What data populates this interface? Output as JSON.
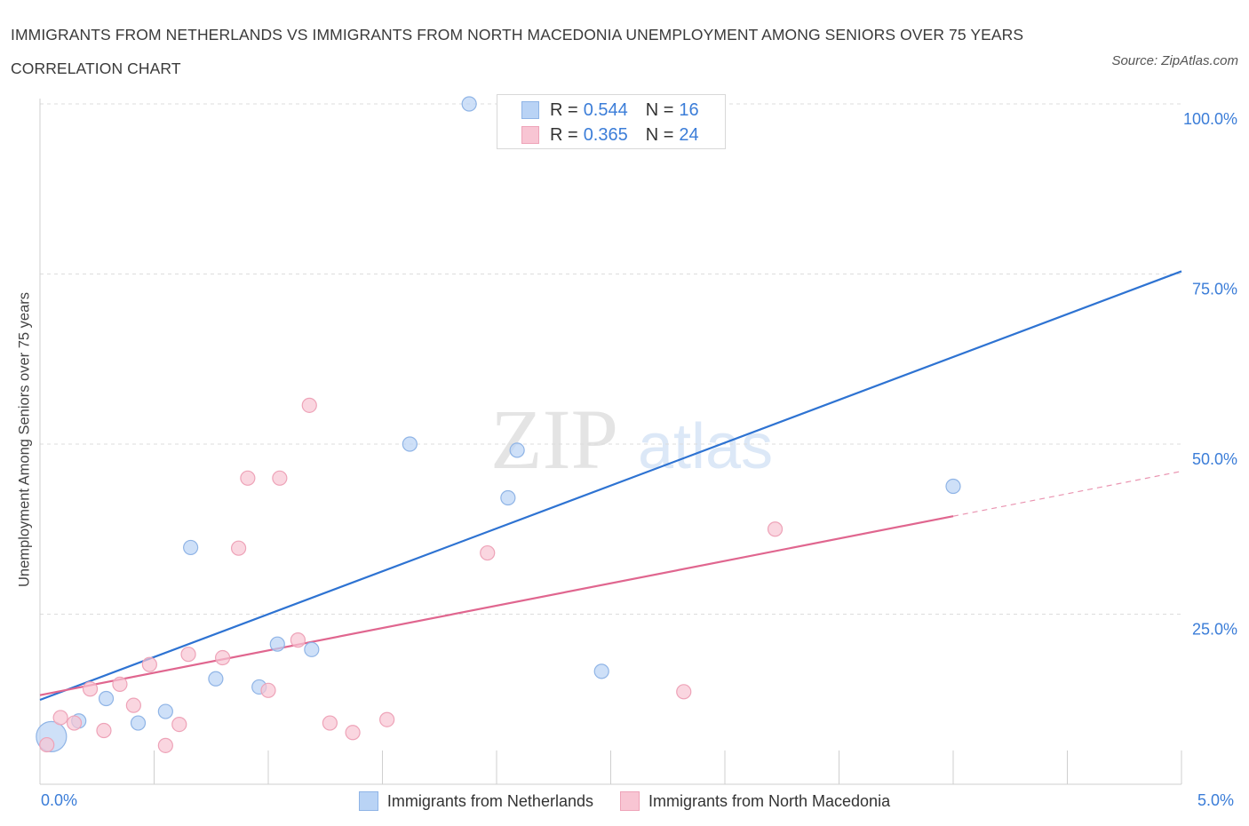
{
  "title": "IMMIGRANTS FROM NETHERLANDS VS IMMIGRANTS FROM NORTH MACEDONIA UNEMPLOYMENT AMONG SENIORS OVER 75 YEARS CORRELATION CHART",
  "source": "Source: ZipAtlas.com",
  "watermark": {
    "zip": "ZIP",
    "atlas": "atlas"
  },
  "legend_top": {
    "rows": [
      {
        "r_label": "R =",
        "r_value": "0.544",
        "n_label": "N =",
        "n_value": "16"
      },
      {
        "r_label": "R =",
        "r_value": "0.365",
        "n_label": "N =",
        "n_value": "24"
      }
    ]
  },
  "x_axis_labels": {
    "left": "0.0%",
    "right": "5.0%"
  },
  "colors": {
    "blue_fill": "#b9d3f5",
    "blue_stroke": "#8fb4e6",
    "blue_line": "#2e73d2",
    "pink_fill": "#f8c5d3",
    "pink_stroke": "#eea3b8",
    "pink_line": "#e0668f",
    "grid": "#dcdcdc",
    "tick_text": "#3b7dd8"
  },
  "chart_data": {
    "type": "scatter",
    "title": "IMMIGRANTS FROM NETHERLANDS VS IMMIGRANTS FROM NORTH MACEDONIA UNEMPLOYMENT AMONG SENIORS OVER 75 YEARS CORRELATION CHART",
    "xlabel": "",
    "ylabel": "Unemployment Among Seniors over 75 years",
    "xlim": [
      0,
      5
    ],
    "ylim": [
      0,
      100
    ],
    "y_ticks": [
      "25.0%",
      "50.0%",
      "75.0%",
      "100.0%"
    ],
    "y_tick_values": [
      25,
      50,
      75,
      100
    ],
    "grid": true,
    "legend_position": "bottom",
    "series": [
      {
        "name": "Immigrants from Netherlands",
        "color": "#b9d3f5",
        "points": [
          {
            "x": 0.05,
            "y": 7.0,
            "size": "large"
          },
          {
            "x": 0.17,
            "y": 9.3
          },
          {
            "x": 0.29,
            "y": 12.6
          },
          {
            "x": 0.43,
            "y": 9.0
          },
          {
            "x": 0.55,
            "y": 10.7
          },
          {
            "x": 0.66,
            "y": 34.8
          },
          {
            "x": 0.77,
            "y": 15.5
          },
          {
            "x": 0.96,
            "y": 14.3
          },
          {
            "x": 1.04,
            "y": 20.6
          },
          {
            "x": 1.19,
            "y": 19.8
          },
          {
            "x": 1.62,
            "y": 50.0
          },
          {
            "x": 1.88,
            "y": 100.0
          },
          {
            "x": 2.05,
            "y": 42.1
          },
          {
            "x": 2.09,
            "y": 49.1
          },
          {
            "x": 2.46,
            "y": 16.6
          },
          {
            "x": 4.0,
            "y": 43.8
          }
        ],
        "trend": {
          "x": [
            0.0,
            5.0
          ],
          "y": [
            12.4,
            75.4
          ]
        }
      },
      {
        "name": "Immigrants from North Macedonia",
        "color": "#f8c5d3",
        "points": [
          {
            "x": 0.03,
            "y": 5.8
          },
          {
            "x": 0.09,
            "y": 9.8
          },
          {
            "x": 0.15,
            "y": 9.0
          },
          {
            "x": 0.22,
            "y": 14.0
          },
          {
            "x": 0.28,
            "y": 7.9
          },
          {
            "x": 0.35,
            "y": 14.7
          },
          {
            "x": 0.41,
            "y": 11.6
          },
          {
            "x": 0.48,
            "y": 17.6
          },
          {
            "x": 0.55,
            "y": 5.7
          },
          {
            "x": 0.61,
            "y": 8.8
          },
          {
            "x": 0.65,
            "y": 19.1
          },
          {
            "x": 0.8,
            "y": 18.6
          },
          {
            "x": 0.87,
            "y": 34.7
          },
          {
            "x": 0.91,
            "y": 45.0
          },
          {
            "x": 1.0,
            "y": 13.8
          },
          {
            "x": 1.05,
            "y": 45.0
          },
          {
            "x": 1.13,
            "y": 21.2
          },
          {
            "x": 1.18,
            "y": 55.7
          },
          {
            "x": 1.27,
            "y": 9.0
          },
          {
            "x": 1.37,
            "y": 7.6
          },
          {
            "x": 1.52,
            "y": 9.5
          },
          {
            "x": 1.96,
            "y": 34.0
          },
          {
            "x": 2.82,
            "y": 13.6
          },
          {
            "x": 3.22,
            "y": 37.5
          }
        ],
        "trend": {
          "x": [
            0.0,
            4.0
          ],
          "y": [
            13.1,
            39.4
          ]
        },
        "trend_extension": {
          "x": [
            4.0,
            5.0
          ],
          "y": [
            39.4,
            46.0
          ]
        }
      }
    ]
  }
}
